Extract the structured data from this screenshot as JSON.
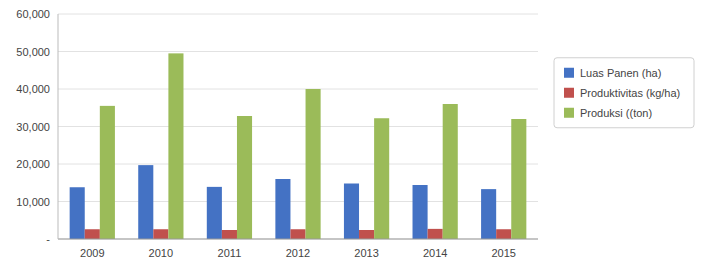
{
  "chart_data": {
    "type": "bar",
    "categories": [
      "2009",
      "2010",
      "2011",
      "2012",
      "2013",
      "2014",
      "2015"
    ],
    "series": [
      {
        "name": "Luas Panen (ha)",
        "color": "#4472C4",
        "values": [
          13800,
          19700,
          13900,
          16000,
          14800,
          14400,
          13300
        ]
      },
      {
        "name": "Produktivitas (kg/ha)",
        "color": "#C0504D",
        "values": [
          2600,
          2600,
          2400,
          2600,
          2400,
          2700,
          2600
        ]
      },
      {
        "name": "Produksi ((ton)",
        "color": "#9BBB59",
        "values": [
          35500,
          49500,
          32800,
          40000,
          32200,
          36000,
          32000
        ]
      }
    ],
    "ylim": [
      0,
      60000
    ],
    "yticks": [
      {
        "value": 0,
        "label": "-"
      },
      {
        "value": 10000,
        "label": "10,000"
      },
      {
        "value": 20000,
        "label": "20,000"
      },
      {
        "value": 30000,
        "label": "30,000"
      },
      {
        "value": 40000,
        "label": "40,000"
      },
      {
        "value": 50000,
        "label": "50,000"
      },
      {
        "value": 60000,
        "label": "60,000"
      }
    ],
    "grid": true,
    "legend": "right"
  }
}
